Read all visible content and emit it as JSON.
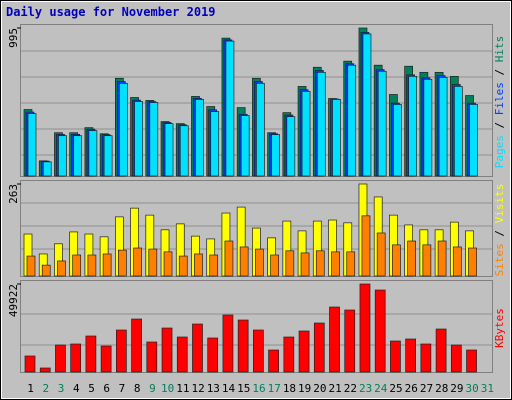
{
  "chart_data": [
    {
      "type": "bar",
      "title": "Daily usage for November 2019",
      "ylim": [
        0,
        995
      ],
      "yticks": [
        995
      ],
      "legend_separator": " / ",
      "series": [
        {
          "name": "Hits",
          "color": "#00805c",
          "values": [
            447,
            102,
            291,
            291,
            325,
            284,
            657,
            528,
            508,
            366,
            352,
            535,
            467,
            927,
            460,
            657,
            291,
            426,
            602,
            731,
            521,
            772,
            995,
            745,
            548,
            738,
            697,
            697,
            670,
            541,
            null
          ]
        },
        {
          "name": "Files",
          "color": "#0040ff",
          "values": [
            430,
            100,
            280,
            280,
            315,
            278,
            635,
            510,
            500,
            360,
            345,
            522,
            445,
            915,
            415,
            635,
            284,
            410,
            580,
            710,
            518,
            755,
            965,
            715,
            490,
            680,
            660,
            675,
            615,
            490,
            null
          ]
        },
        {
          "name": "Pages",
          "color": "#00e0ff",
          "values": [
            420,
            95,
            271,
            271,
            305,
            271,
            623,
            501,
            494,
            352,
            338,
            515,
            433,
            907,
            406,
            623,
            278,
            399,
            569,
            697,
            515,
            745,
            955,
            704,
            481,
            670,
            650,
            663,
            602,
            481,
            null
          ]
        }
      ]
    },
    {
      "type": "bar",
      "ylim": [
        0,
        263
      ],
      "yticks": [
        263
      ],
      "legend_separator": " / ",
      "series": [
        {
          "name": "Visits",
          "color": "#ffff00",
          "values": [
            120,
            63,
            92,
            126,
            120,
            112,
            169,
            194,
            174,
            132,
            149,
            114,
            106,
            180,
            197,
            137,
            109,
            157,
            129,
            157,
            160,
            152,
            263,
            226,
            174,
            146,
            132,
            132,
            154,
            129,
            null
          ]
        },
        {
          "name": "Sites",
          "color": "#ff8000",
          "values": [
            57,
            31,
            43,
            60,
            60,
            63,
            74,
            80,
            77,
            69,
            57,
            63,
            60,
            100,
            83,
            77,
            60,
            72,
            66,
            72,
            69,
            69,
            172,
            123,
            89,
            100,
            89,
            100,
            83,
            80,
            null
          ]
        }
      ]
    },
    {
      "type": "bar",
      "ylim": [
        0,
        49922
      ],
      "yticks": [
        49922
      ],
      "series": [
        {
          "name": "KBytes",
          "color": "#ff0000",
          "values": [
            9072,
            2268,
            15309,
            15876,
            20412,
            14742,
            23814,
            30051,
            17010,
            24948,
            19845,
            27216,
            19278,
            32319,
            29484,
            23814,
            12474,
            19845,
            23247,
            27783,
            36855,
            35154,
            49922,
            46494,
            17577,
            18711,
            15876,
            24381,
            15309,
            12474,
            null
          ]
        }
      ],
      "categories": [
        "1",
        "2",
        "3",
        "4",
        "5",
        "6",
        "7",
        "8",
        "9",
        "10",
        "11",
        "12",
        "13",
        "14",
        "15",
        "16",
        "17",
        "18",
        "19",
        "20",
        "21",
        "22",
        "23",
        "24",
        "25",
        "26",
        "27",
        "28",
        "29",
        "30",
        "31"
      ],
      "category_color": "#000000",
      "highlight_indices": [
        1,
        2,
        8,
        9,
        15,
        16,
        22,
        23,
        29,
        30
      ],
      "highlight_color": "#00805c"
    }
  ]
}
